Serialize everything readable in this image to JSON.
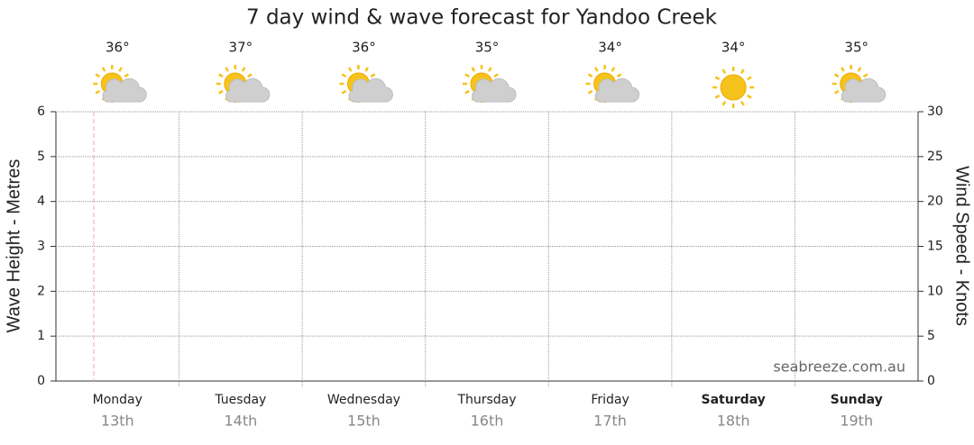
{
  "chart_data": {
    "type": "line",
    "title": "7 day wind & wave forecast for Yandoo Creek",
    "y_label": "Wave Height - Metres",
    "y2_label": "Wind Speed - Knots",
    "ylim": [
      0,
      6
    ],
    "yticks": [
      0,
      1,
      2,
      3,
      4,
      5,
      6
    ],
    "y2lim": [
      0,
      30
    ],
    "y2ticks": [
      0,
      5,
      10,
      15,
      20,
      25,
      30
    ],
    "grid": true,
    "categories": [
      "Monday",
      "Tuesday",
      "Wednesday",
      "Thursday",
      "Friday",
      "Saturday",
      "Sunday"
    ],
    "dates": [
      "13th",
      "14th",
      "15th",
      "16th",
      "17th",
      "18th",
      "19th"
    ],
    "bold": [
      false,
      false,
      false,
      false,
      false,
      true,
      true
    ],
    "temperatures": {
      "values": [
        36,
        37,
        36,
        35,
        34,
        34,
        35
      ],
      "value_labels": [
        "36°",
        "37°",
        "36°",
        "35°",
        "34°",
        "34°",
        "35°"
      ]
    },
    "icons": [
      "sun-cloud",
      "sun-cloud",
      "sun-cloud",
      "sun-cloud",
      "sun-cloud",
      "sun",
      "sun-cloud"
    ],
    "watermark": "seabreeze.com.au"
  }
}
